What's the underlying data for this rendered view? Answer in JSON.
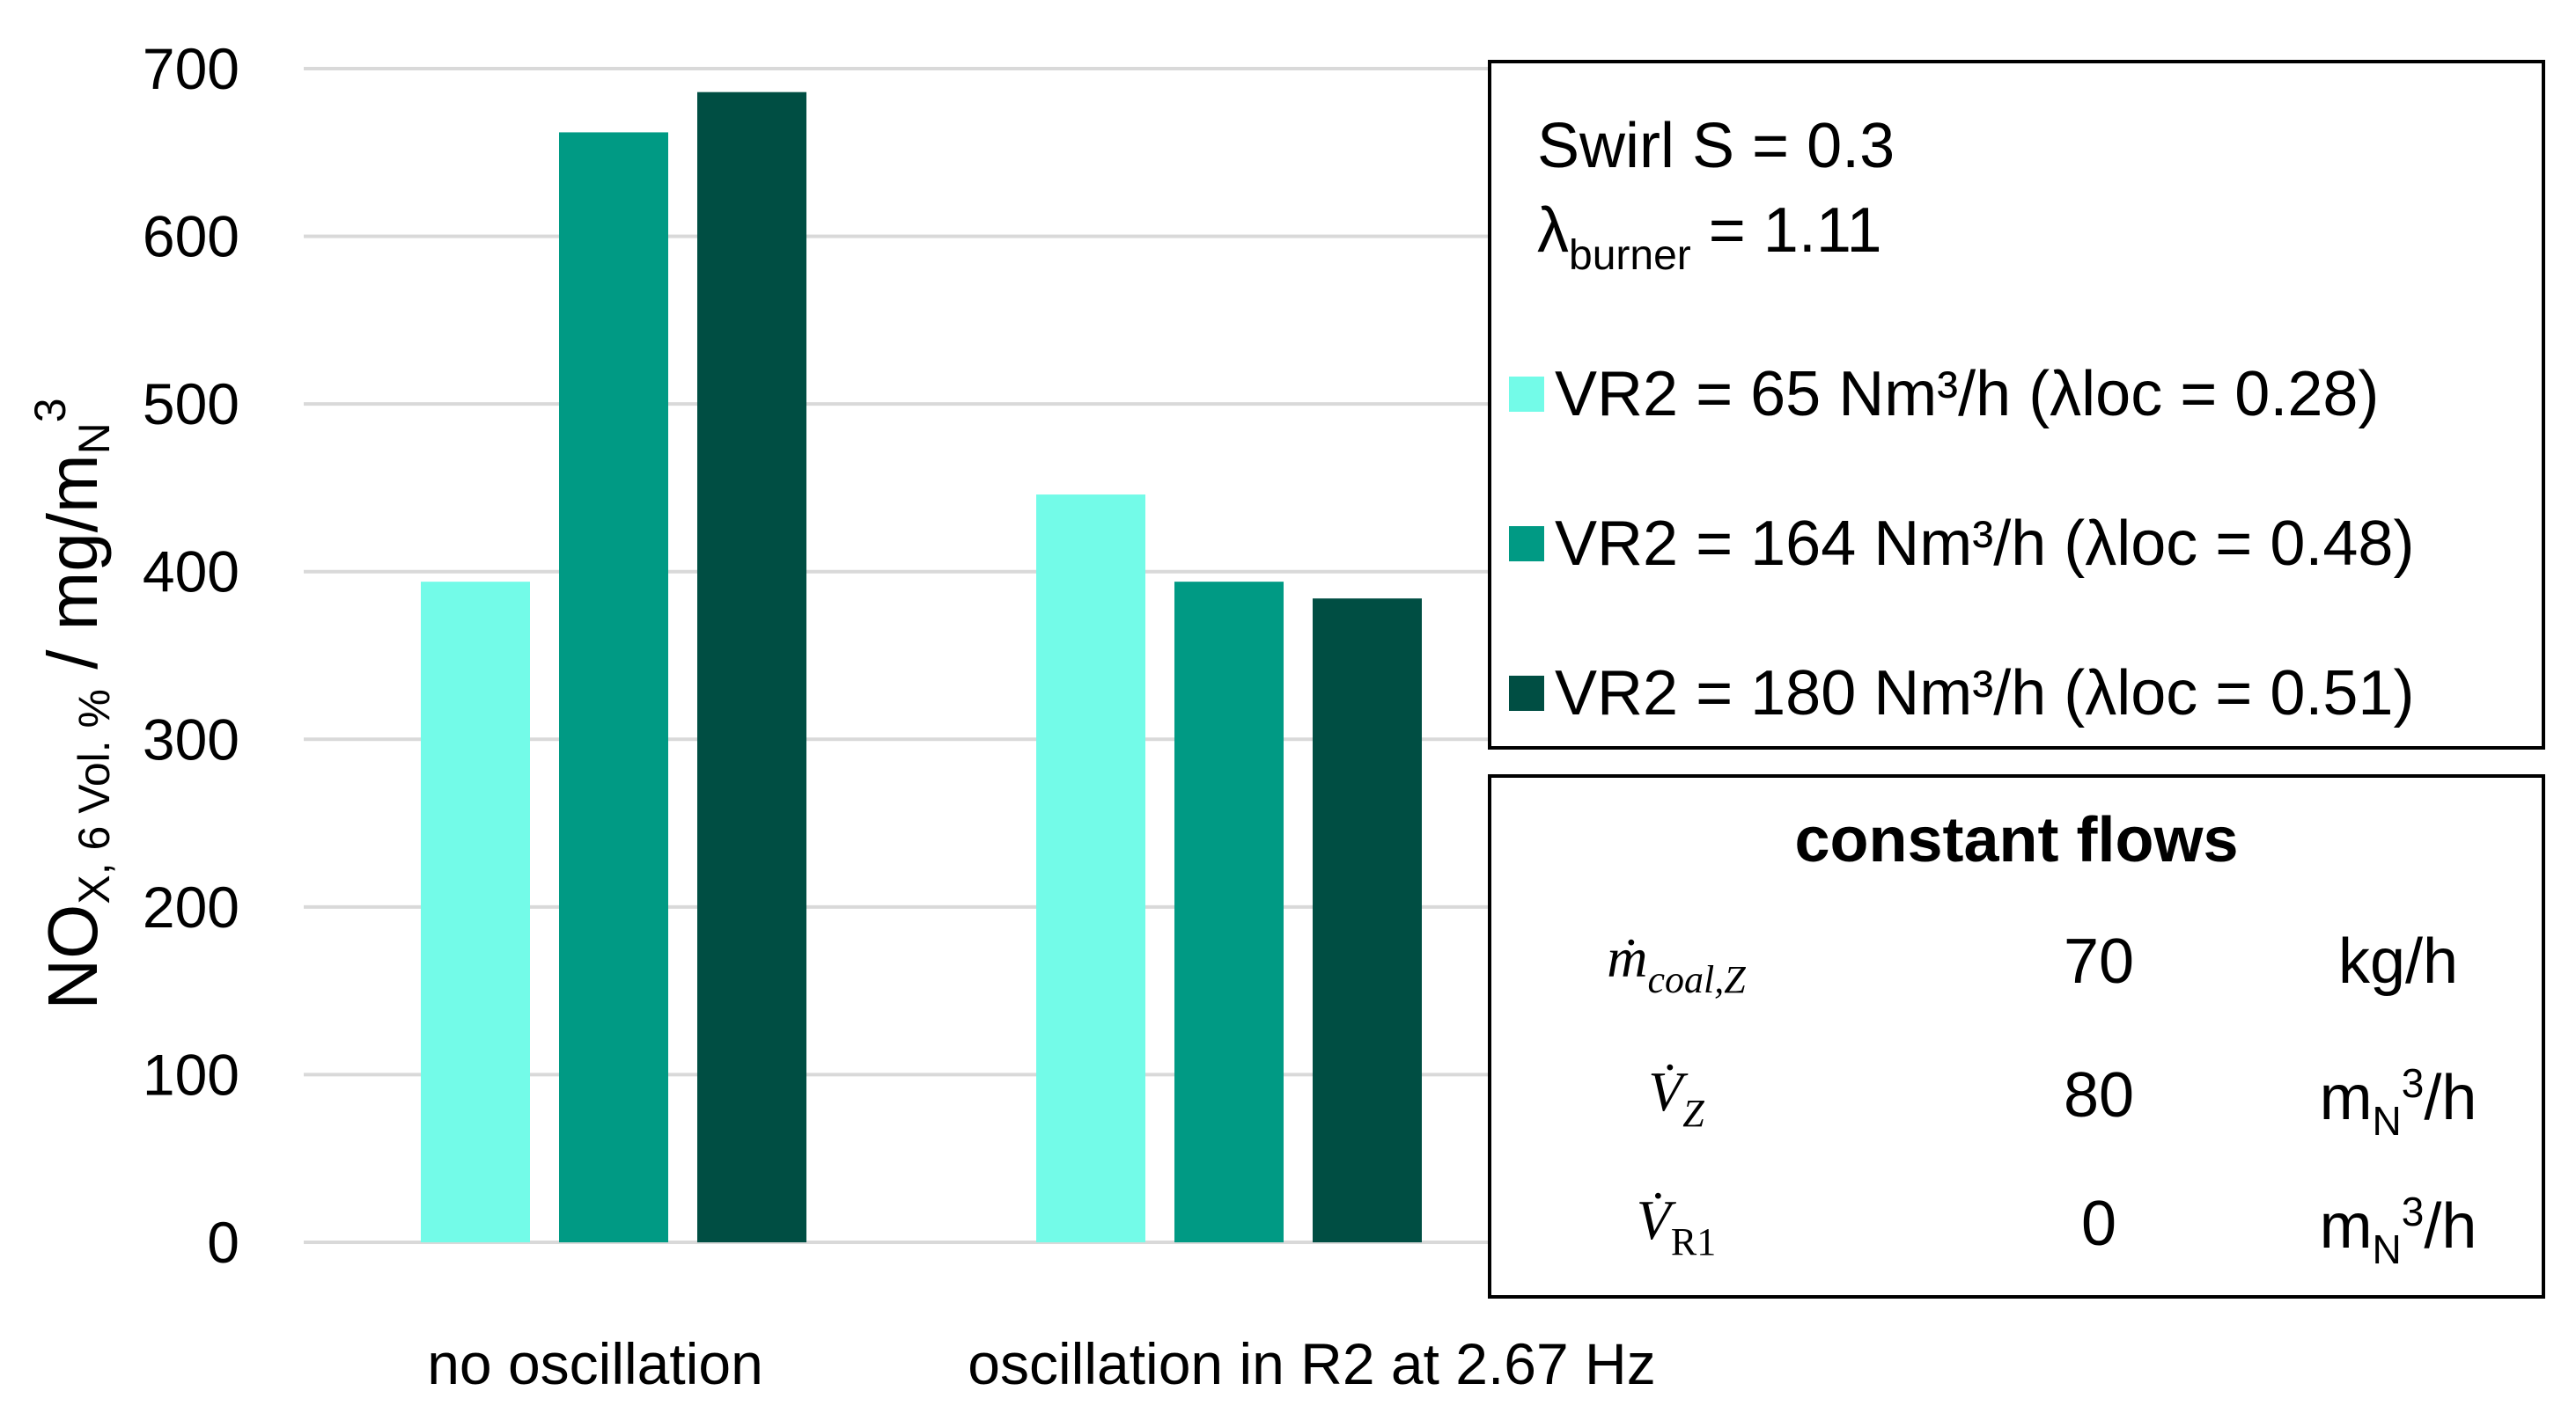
{
  "chart_data": {
    "type": "bar",
    "categories": [
      "no oscillation",
      "oscillation in R2 at 2.67 Hz"
    ],
    "series": [
      {
        "name": "VR2 = 65 Nm³/h (λloc = 0.28)",
        "color": "#73FBE8",
        "values": [
          394,
          446
        ]
      },
      {
        "name": "VR2 = 164 Nm³/h (λloc = 0.48)",
        "color": "#009A84",
        "values": [
          662,
          394
        ]
      },
      {
        "name": "VR2 = 180 Nm³/h (λloc = 0.51)",
        "color": "#004E43",
        "values": [
          686,
          384
        ]
      }
    ],
    "ylim": [
      0,
      700
    ],
    "yticks": [
      0,
      100,
      200,
      300,
      400,
      500,
      600,
      700
    ],
    "ylabel": {
      "main": "NO",
      "sub": "X, 6 Vol. %",
      "rest": " / mg/m",
      "sub2": "N",
      "sup": "3"
    },
    "grid": true,
    "grid_color": "#D9D9D9",
    "legend_position": "right"
  },
  "parameters": {
    "swirl": "Swirl S = 0.3",
    "lambda_symbol": "λ",
    "lambda_sub": "burner",
    "lambda_value": " = 1.11"
  },
  "constant_flows": {
    "title": "constant flows",
    "rows": [
      {
        "symbol": "ṁ",
        "sub": "coal,Z",
        "value": "70",
        "unit": "kg/h"
      },
      {
        "symbol": "V̇",
        "sub": "Z",
        "value": "80",
        "unit_main": "m",
        "unit_sub": "N",
        "unit_sup": "3",
        "unit_rest": "/h"
      },
      {
        "symbol": "V̇",
        "sub": "R1",
        "value": "0",
        "unit_main": "m",
        "unit_sub": "N",
        "unit_sup": "3",
        "unit_rest": "/h"
      }
    ]
  }
}
